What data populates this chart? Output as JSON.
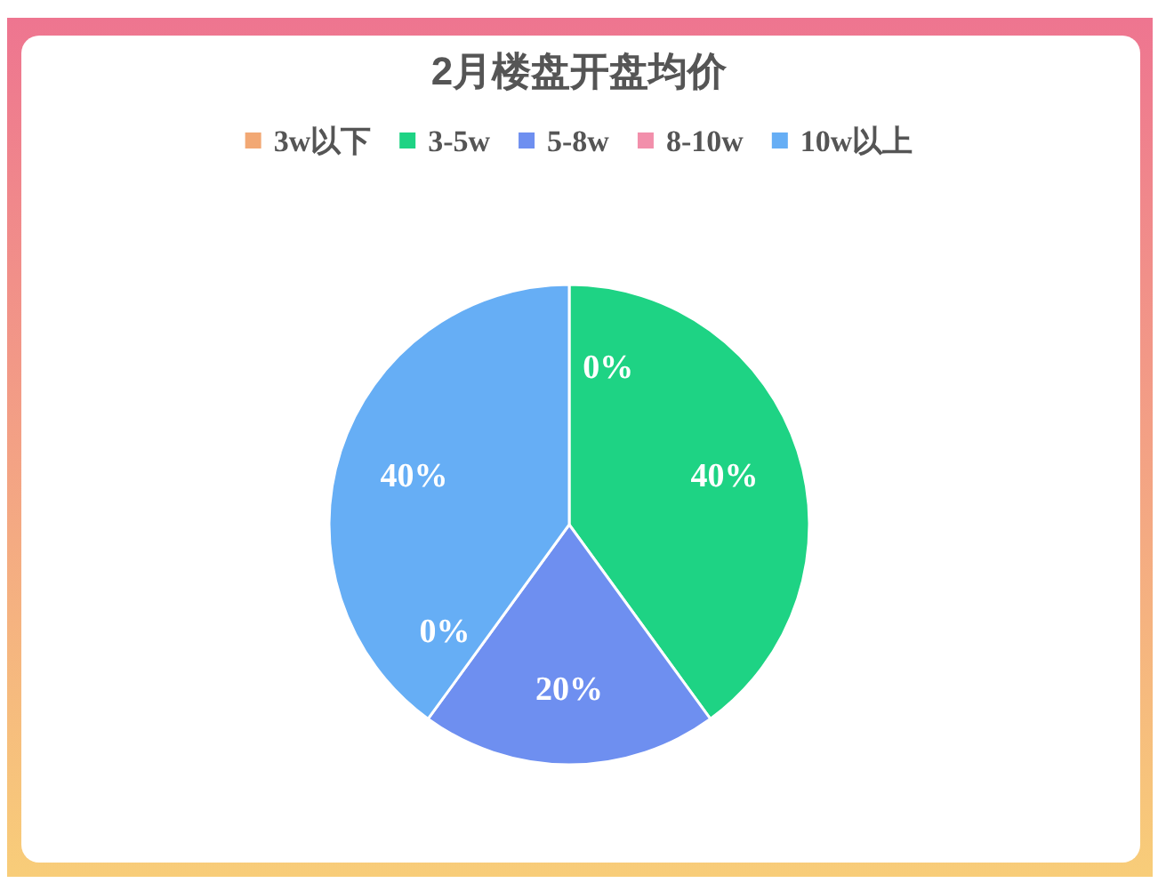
{
  "chart_data": {
    "type": "pie",
    "title": "2月楼盘开盘均价",
    "categories": [
      "3w以下",
      "3-5w",
      "5-8w",
      "8-10w",
      "10w以上"
    ],
    "values": [
      0,
      40,
      20,
      0,
      40
    ],
    "colors": [
      "#f2a874",
      "#1ed384",
      "#6e8ff0",
      "#f28fab",
      "#66aef5"
    ],
    "value_labels": [
      "0%",
      "40%",
      "20%",
      "0%",
      "40%"
    ],
    "legend": "top"
  }
}
